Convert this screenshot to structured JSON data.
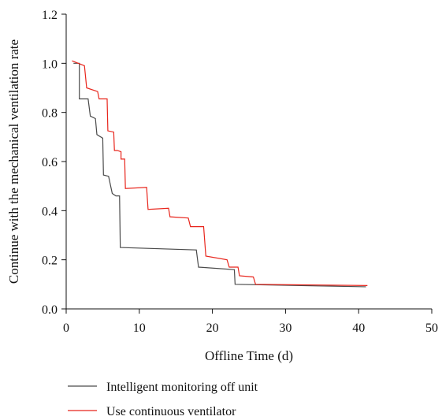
{
  "chart_data": {
    "type": "line",
    "step": true,
    "xlabel": "Offline Time (d)",
    "ylabel": "Continue with the mechanical ventilation rate",
    "xlim": [
      0,
      50
    ],
    "ylim": [
      0.0,
      1.2
    ],
    "xticks": [
      "0",
      "10",
      "20",
      "30",
      "40",
      "50"
    ],
    "yticks": [
      "0.0",
      "0.2",
      "0.4",
      "0.6",
      "0.8",
      "1.0",
      "1.2"
    ],
    "grid": false,
    "legend_position": "bottom",
    "series": [
      {
        "name": "Intelligent monitoring off unit",
        "color": "#4a4a4a",
        "points": [
          [
            1.0,
            1.0
          ],
          [
            1.8,
            1.0
          ],
          [
            1.8,
            0.855
          ],
          [
            3.0,
            0.855
          ],
          [
            3.3,
            0.785
          ],
          [
            4.0,
            0.775
          ],
          [
            4.2,
            0.71
          ],
          [
            5.0,
            0.695
          ],
          [
            5.1,
            0.545
          ],
          [
            5.8,
            0.54
          ],
          [
            6.3,
            0.47
          ],
          [
            6.8,
            0.46
          ],
          [
            7.3,
            0.46
          ],
          [
            7.4,
            0.25
          ],
          [
            17.8,
            0.24
          ],
          [
            18.1,
            0.17
          ],
          [
            23.0,
            0.16
          ],
          [
            23.1,
            0.1
          ],
          [
            41.0,
            0.09
          ]
        ]
      },
      {
        "name": "Use continuous ventilator",
        "color": "#e8251c",
        "points": [
          [
            0.8,
            1.01
          ],
          [
            2.5,
            0.99
          ],
          [
            2.8,
            0.9
          ],
          [
            4.3,
            0.885
          ],
          [
            4.5,
            0.855
          ],
          [
            5.1,
            0.855
          ],
          [
            5.6,
            0.855
          ],
          [
            5.7,
            0.725
          ],
          [
            6.5,
            0.72
          ],
          [
            6.6,
            0.645
          ],
          [
            7.0,
            0.645
          ],
          [
            7.5,
            0.64
          ],
          [
            7.5,
            0.61
          ],
          [
            8.0,
            0.61
          ],
          [
            8.1,
            0.49
          ],
          [
            11.0,
            0.495
          ],
          [
            11.2,
            0.405
          ],
          [
            14.0,
            0.41
          ],
          [
            14.2,
            0.375
          ],
          [
            16.7,
            0.37
          ],
          [
            17.0,
            0.335
          ],
          [
            18.8,
            0.335
          ],
          [
            19.1,
            0.215
          ],
          [
            22.0,
            0.2
          ],
          [
            22.3,
            0.17
          ],
          [
            23.5,
            0.17
          ],
          [
            23.7,
            0.135
          ],
          [
            25.6,
            0.13
          ],
          [
            25.9,
            0.1
          ],
          [
            41.2,
            0.095
          ]
        ]
      }
    ]
  },
  "legend": {
    "items": [
      {
        "name": "Intelligent monitoring off unit",
        "color": "#4a4a4a"
      },
      {
        "name": "Use continuous ventilator",
        "color": "#e8251c"
      }
    ]
  }
}
